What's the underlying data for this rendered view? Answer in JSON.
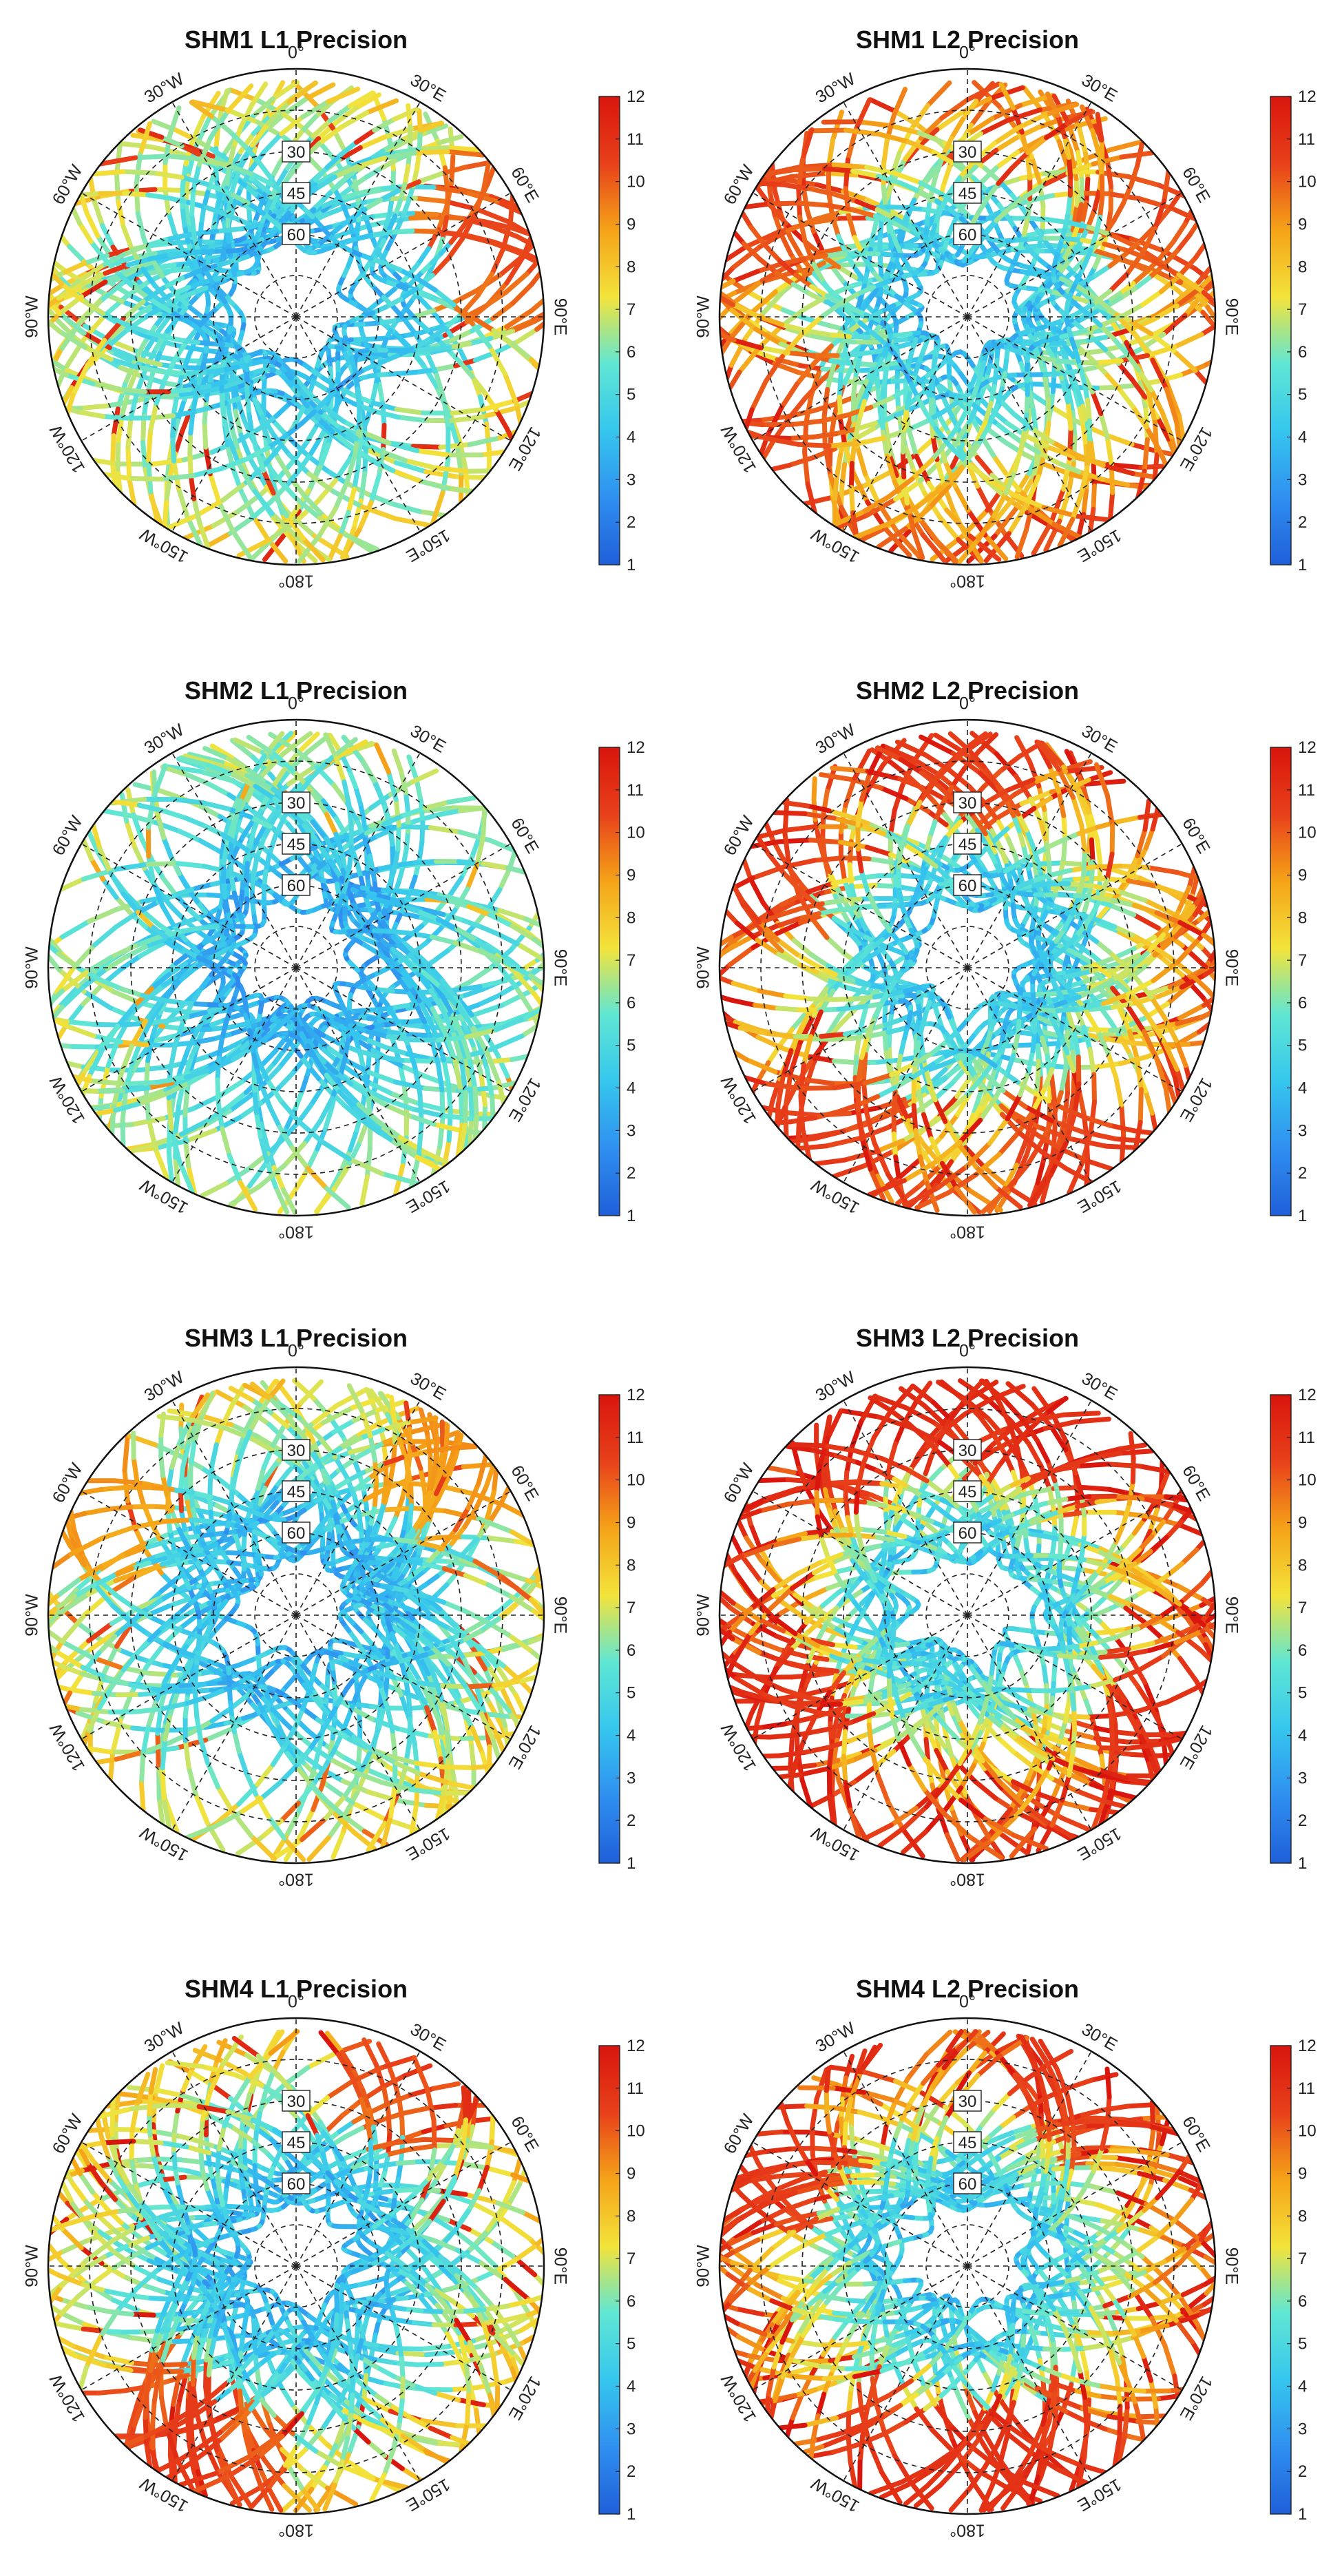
{
  "figure": {
    "description_free": true,
    "colormap": [
      "#1f5fd9",
      "#2f8ff0",
      "#35c6ee",
      "#5fe6d4",
      "#f3e33a",
      "#f5a318",
      "#e8401a",
      "#d9150d"
    ]
  },
  "chart_data": [
    {
      "type": "polar-skyplot",
      "title": "SHM1 L1 Precision",
      "azimuth_labels": [
        "0°",
        "30°E",
        "60°E",
        "90°E",
        "120°E",
        "150°E",
        "180°",
        "150°W",
        "120°W",
        "90°W",
        "60°W",
        "30°W"
      ],
      "elevation_labels": [
        "30",
        "45",
        "60"
      ],
      "elevation_values": [
        30,
        45,
        60
      ],
      "colorbar": {
        "min": 1,
        "max": 12,
        "ticks": [
          1,
          2,
          3,
          4,
          5,
          6,
          7,
          8,
          9,
          10,
          11,
          12
        ]
      },
      "seed": 11,
      "value_profile": {
        "base": 5.0,
        "edge_boost": 1.6,
        "hot_azimuths": [
          60,
          75
        ],
        "hot_level": 10.5,
        "high_fraction": 0.06
      }
    },
    {
      "type": "polar-skyplot",
      "title": "SHM1 L2 Precision",
      "azimuth_labels": [
        "0°",
        "30°E",
        "60°E",
        "90°E",
        "120°E",
        "150°E",
        "180°",
        "150°W",
        "120°W",
        "90°W",
        "60°W",
        "30°W"
      ],
      "elevation_labels": [
        "30",
        "45",
        "60"
      ],
      "elevation_values": [
        30,
        45,
        60
      ],
      "colorbar": {
        "min": 1,
        "max": 12,
        "ticks": [
          1,
          2,
          3,
          4,
          5,
          6,
          7,
          8,
          9,
          10,
          11,
          12
        ]
      },
      "seed": 23,
      "value_profile": {
        "base": 5.2,
        "edge_boost": 3.0,
        "hot_azimuths": [
          60,
          300,
          240
        ],
        "hot_level": 10.5,
        "high_fraction": 0.14
      }
    },
    {
      "type": "polar-skyplot",
      "title": "SHM2 L1 Precision",
      "azimuth_labels": [
        "0°",
        "30°E",
        "60°E",
        "90°E",
        "120°E",
        "150°E",
        "180°",
        "150°W",
        "120°W",
        "90°W",
        "60°W",
        "30°W"
      ],
      "elevation_labels": [
        "30",
        "45",
        "60"
      ],
      "elevation_values": [
        30,
        45,
        60
      ],
      "colorbar": {
        "min": 1,
        "max": 12,
        "ticks": [
          1,
          2,
          3,
          4,
          5,
          6,
          7,
          8,
          9,
          10,
          11,
          12
        ]
      },
      "seed": 37,
      "value_profile": {
        "base": 4.6,
        "edge_boost": 1.4,
        "hot_azimuths": [],
        "hot_level": 8.0,
        "high_fraction": 0.03
      }
    },
    {
      "type": "polar-skyplot",
      "title": "SHM2 L2 Precision",
      "azimuth_labels": [
        "0°",
        "30°E",
        "60°E",
        "90°E",
        "120°E",
        "150°E",
        "180°",
        "150°W",
        "120°W",
        "90°W",
        "60°W",
        "30°W"
      ],
      "elevation_labels": [
        "30",
        "45",
        "60"
      ],
      "elevation_values": [
        30,
        45,
        60
      ],
      "colorbar": {
        "min": 1,
        "max": 12,
        "ticks": [
          1,
          2,
          3,
          4,
          5,
          6,
          7,
          8,
          9,
          10,
          11,
          12
        ]
      },
      "seed": 41,
      "value_profile": {
        "base": 5.2,
        "edge_boost": 3.2,
        "hot_azimuths": [
          0,
          300,
          220,
          150
        ],
        "hot_level": 10.8,
        "high_fraction": 0.15
      }
    },
    {
      "type": "polar-skyplot",
      "title": "SHM3 L1 Precision",
      "azimuth_labels": [
        "0°",
        "30°E",
        "60°E",
        "90°E",
        "120°E",
        "150°E",
        "180°",
        "150°W",
        "120°W",
        "90°W",
        "60°W",
        "30°W"
      ],
      "elevation_labels": [
        "30",
        "45",
        "60"
      ],
      "elevation_values": [
        30,
        45,
        60
      ],
      "colorbar": {
        "min": 1,
        "max": 12,
        "ticks": [
          1,
          2,
          3,
          4,
          5,
          6,
          7,
          8,
          9,
          10,
          11,
          12
        ]
      },
      "seed": 53,
      "value_profile": {
        "base": 4.8,
        "edge_boost": 1.8,
        "hot_azimuths": [
          45,
          300
        ],
        "hot_level": 9.5,
        "high_fraction": 0.05
      }
    },
    {
      "type": "polar-skyplot",
      "title": "SHM3 L2 Precision",
      "azimuth_labels": [
        "0°",
        "30°E",
        "60°E",
        "90°E",
        "120°E",
        "150°E",
        "180°",
        "150°W",
        "120°W",
        "90°W",
        "60°W",
        "30°W"
      ],
      "elevation_labels": [
        "30",
        "45",
        "60"
      ],
      "elevation_values": [
        30,
        45,
        60
      ],
      "colorbar": {
        "min": 1,
        "max": 12,
        "ticks": [
          1,
          2,
          3,
          4,
          5,
          6,
          7,
          8,
          9,
          10,
          11,
          12
        ]
      },
      "seed": 67,
      "value_profile": {
        "base": 5.6,
        "edge_boost": 3.6,
        "hot_azimuths": [
          0,
          30,
          330,
          240,
          120
        ],
        "hot_level": 11.2,
        "high_fraction": 0.2
      }
    },
    {
      "type": "polar-skyplot",
      "title": "SHM4 L1 Precision",
      "azimuth_labels": [
        "0°",
        "30°E",
        "60°E",
        "90°E",
        "120°E",
        "150°E",
        "180°",
        "150°W",
        "120°W",
        "90°W",
        "60°W",
        "30°W"
      ],
      "elevation_labels": [
        "30",
        "45",
        "60"
      ],
      "elevation_values": [
        30,
        45,
        60
      ],
      "colorbar": {
        "min": 1,
        "max": 12,
        "ticks": [
          1,
          2,
          3,
          4,
          5,
          6,
          7,
          8,
          9,
          10,
          11,
          12
        ]
      },
      "seed": 79,
      "value_profile": {
        "base": 5.0,
        "edge_boost": 2.0,
        "hot_azimuths": [
          30,
          200,
          220
        ],
        "hot_level": 10.8,
        "high_fraction": 0.08
      }
    },
    {
      "type": "polar-skyplot",
      "title": "SHM4 L2 Precision",
      "azimuth_labels": [
        "0°",
        "30°E",
        "60°E",
        "90°E",
        "120°E",
        "150°E",
        "180°",
        "150°W",
        "120°W",
        "90°W",
        "60°W",
        "30°W"
      ],
      "elevation_labels": [
        "30",
        "45",
        "60"
      ],
      "elevation_values": [
        30,
        45,
        60
      ],
      "colorbar": {
        "min": 1,
        "max": 12,
        "ticks": [
          1,
          2,
          3,
          4,
          5,
          6,
          7,
          8,
          9,
          10,
          11,
          12
        ]
      },
      "seed": 97,
      "value_profile": {
        "base": 5.4,
        "edge_boost": 3.2,
        "hot_azimuths": [
          30,
          200,
          180,
          160,
          300
        ],
        "hot_level": 11.0,
        "high_fraction": 0.16
      }
    }
  ]
}
